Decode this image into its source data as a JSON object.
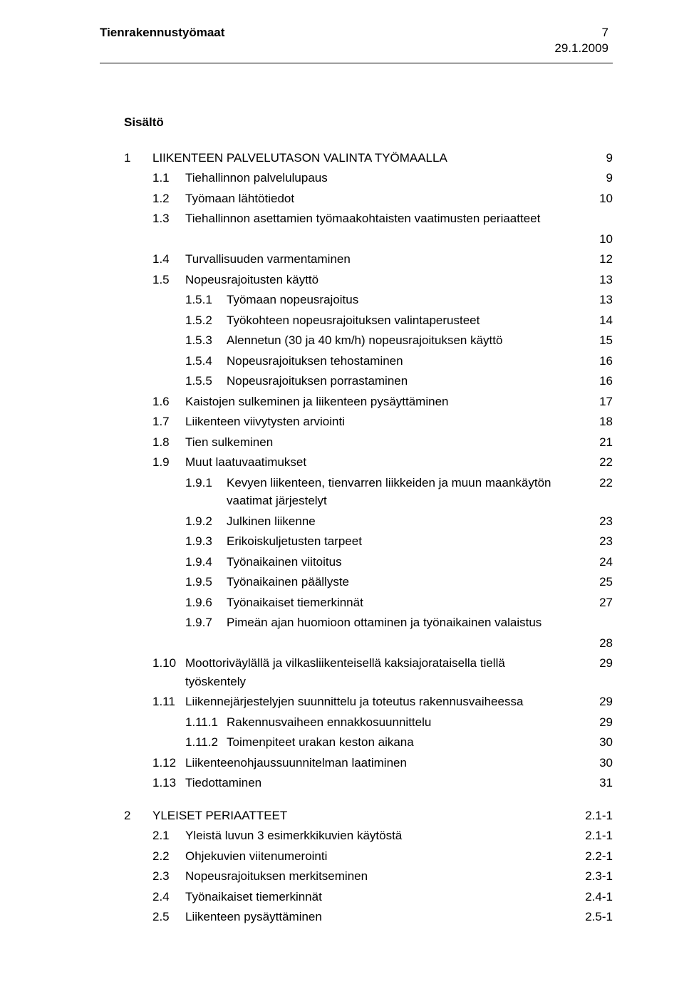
{
  "header": {
    "title": "Tienrakennustyömaat",
    "page_number": "7",
    "date": "29.1.2009"
  },
  "toc_title": "Sisältö",
  "chapters": [
    {
      "num": "1",
      "label": "LIIKENTEEN PALVELUTASON VALINTA TYÖMAALLA",
      "page": "9",
      "items": [
        {
          "num": "1.1",
          "label": "Tiehallinnon palvelulupaus",
          "page": "9"
        },
        {
          "num": "1.2",
          "label": "Työmaan lähtötiedot",
          "page": "10"
        },
        {
          "num": "1.3",
          "label": "Tiehallinnon asettamien työmaakohtaisten vaatimusten periaatteet",
          "page": "10",
          "page_below": true
        },
        {
          "num": "1.4",
          "label": "Turvallisuuden varmentaminen",
          "page": "12"
        },
        {
          "num": "1.5",
          "label": "Nopeusrajoitusten käyttö",
          "page": "13",
          "subitems": [
            {
              "num": "1.5.1",
              "label": "Työmaan nopeusrajoitus",
              "page": "13"
            },
            {
              "num": "1.5.2",
              "label": "Työkohteen nopeusrajoituksen valintaperusteet",
              "page": "14"
            },
            {
              "num": "1.5.3",
              "label": "Alennetun (30 ja 40 km/h) nopeusrajoituksen käyttö",
              "page": "15"
            },
            {
              "num": "1.5.4",
              "label": "Nopeusrajoituksen tehostaminen",
              "page": "16"
            },
            {
              "num": "1.5.5",
              "label": "Nopeusrajoituksen porrastaminen",
              "page": "16"
            }
          ]
        },
        {
          "num": "1.6",
          "label": "Kaistojen sulkeminen ja liikenteen pysäyttäminen",
          "page": "17"
        },
        {
          "num": "1.7",
          "label": "Liikenteen viivytysten arviointi",
          "page": "18"
        },
        {
          "num": "1.8",
          "label": "Tien sulkeminen",
          "page": "21"
        },
        {
          "num": "1.9",
          "label": "Muut laatuvaatimukset",
          "page": "22",
          "subitems": [
            {
              "num": "1.9.1",
              "label": "Kevyen liikenteen, tienvarren liikkeiden ja muun maankäytön vaatimat järjestelyt",
              "page": "22"
            },
            {
              "num": "1.9.2",
              "label": "Julkinen liikenne",
              "page": "23"
            },
            {
              "num": "1.9.3",
              "label": "Erikoiskuljetusten tarpeet",
              "page": "23"
            },
            {
              "num": "1.9.4",
              "label": "Työnaikainen viitoitus",
              "page": "24"
            },
            {
              "num": "1.9.5",
              "label": "Työnaikainen päällyste",
              "page": "25"
            },
            {
              "num": "1.9.6",
              "label": "Työnaikaiset tiemerkinnät",
              "page": "27"
            },
            {
              "num": "1.9.7",
              "label": "Pimeän ajan huomioon ottaminen ja työnaikainen valaistus",
              "page": "28",
              "page_below": true
            }
          ]
        },
        {
          "num": "1.10",
          "label": "Moottoriväylällä ja vilkasliikenteisellä kaksiajorataisella tiellä työskentely",
          "page": "29"
        },
        {
          "num": "1.11",
          "label": "Liikennejärjestelyjen suunnittelu ja toteutus rakennusvaiheessa",
          "page": "29",
          "subitems": [
            {
              "num": "1.11.1",
              "label": "Rakennusvaiheen ennakkosuunnittelu",
              "page": "29"
            },
            {
              "num": "1.11.2",
              "label": "Toimenpiteet urakan keston aikana",
              "page": "30"
            }
          ]
        },
        {
          "num": "1.12",
          "label": "Liikenteenohjaussuunnitelman laatiminen",
          "page": "30"
        },
        {
          "num": "1.13",
          "label": "Tiedottaminen",
          "page": "31"
        }
      ]
    },
    {
      "num": "2",
      "label": "YLEISET PERIAATTEET",
      "page": "2.1-1",
      "items": [
        {
          "num": "2.1",
          "label": "Yleistä luvun 3 esimerkkikuvien käytöstä",
          "page": "2.1-1"
        },
        {
          "num": "2.2",
          "label": "Ohjekuvien viitenumerointi",
          "page": "2.2-1"
        },
        {
          "num": "2.3",
          "label": "Nopeusrajoituksen merkitseminen",
          "page": "2.3-1"
        },
        {
          "num": "2.4",
          "label": "Työnaikaiset tiemerkinnät",
          "page": "2.4-1"
        },
        {
          "num": "2.5",
          "label": "Liikenteen pysäyttäminen",
          "page": "2.5-1"
        }
      ]
    }
  ]
}
